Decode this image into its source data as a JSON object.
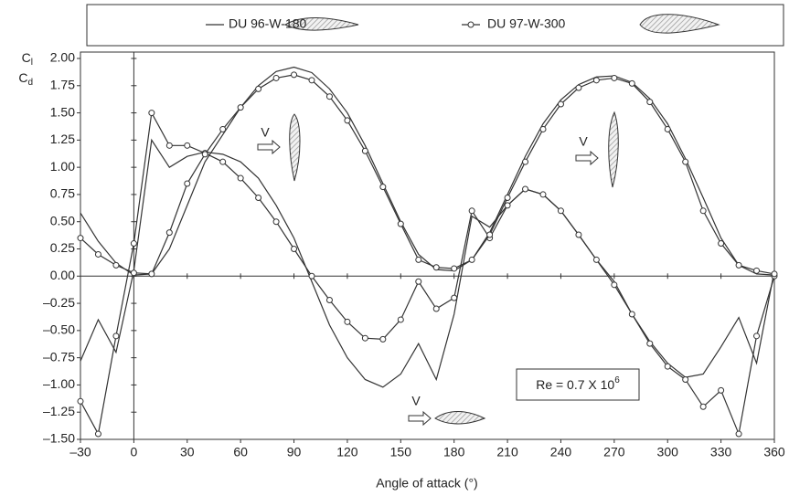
{
  "chart_data": {
    "type": "line",
    "xlabel": "Angle of attack (°)",
    "ylabel_lift": {
      "base": "C",
      "sub": "l"
    },
    "ylabel_drag": {
      "base": "C",
      "sub": "d"
    },
    "annotation": {
      "base": "Re = 0.7 X 10",
      "sup": "6"
    },
    "flow_label": "V",
    "xlim": [
      -30,
      360
    ],
    "ylim": [
      -1.5,
      2.0
    ],
    "xticks": [
      {
        "value": -30,
        "label": "–30"
      },
      0,
      30,
      60,
      90,
      120,
      150,
      180,
      210,
      240,
      270,
      300,
      330,
      360
    ],
    "yticks": [
      {
        "value": -1.5,
        "label": "–1.50"
      },
      {
        "value": -1.25,
        "label": "–1.25"
      },
      {
        "value": -1.0,
        "label": "–1.00"
      },
      {
        "value": -0.75,
        "label": "–0.75"
      },
      {
        "value": -0.5,
        "label": "–0.50"
      },
      {
        "value": -0.25,
        "label": "–0.25"
      },
      {
        "value": 0,
        "label": "0.00"
      },
      {
        "value": 0.25,
        "label": "0.25"
      },
      {
        "value": 0.5,
        "label": "0.50"
      },
      {
        "value": 0.75,
        "label": "0.75"
      },
      {
        "value": 1.0,
        "label": "1.00"
      },
      {
        "value": 1.25,
        "label": "1.25"
      },
      {
        "value": 1.5,
        "label": "1.50"
      },
      {
        "value": 1.75,
        "label": "1.75"
      },
      {
        "value": 2.0,
        "label": "2.00"
      }
    ],
    "x": [
      -30,
      -20,
      -10,
      0,
      10,
      20,
      30,
      40,
      50,
      60,
      70,
      80,
      90,
      100,
      110,
      120,
      130,
      140,
      150,
      160,
      170,
      180,
      190,
      200,
      210,
      220,
      230,
      240,
      250,
      260,
      270,
      280,
      290,
      300,
      310,
      320,
      330,
      340,
      350,
      360
    ],
    "series": [
      {
        "name": "DU 96-W-180",
        "color": "#333333",
        "markers": false,
        "cl": [
          -0.78,
          -0.4,
          -0.7,
          0.05,
          1.25,
          1.0,
          1.1,
          1.14,
          1.12,
          1.05,
          0.9,
          0.65,
          0.35,
          -0.05,
          -0.45,
          -0.75,
          -0.95,
          -1.02,
          -0.9,
          -0.62,
          -0.95,
          -0.35,
          0.55,
          0.45,
          0.65,
          0.8,
          0.75,
          0.6,
          0.38,
          0.15,
          -0.05,
          -0.35,
          -0.6,
          -0.8,
          -0.93,
          -0.9,
          -0.65,
          -0.38,
          -0.8,
          0.05
        ],
        "cd": [
          0.58,
          0.32,
          0.12,
          0.01,
          0.02,
          0.25,
          0.65,
          1.05,
          1.3,
          1.55,
          1.75,
          1.88,
          1.92,
          1.87,
          1.72,
          1.5,
          1.2,
          0.85,
          0.5,
          0.2,
          0.06,
          0.05,
          0.15,
          0.4,
          0.75,
          1.1,
          1.4,
          1.62,
          1.76,
          1.83,
          1.84,
          1.78,
          1.63,
          1.4,
          1.08,
          0.72,
          0.35,
          0.1,
          0.02,
          0.01
        ]
      },
      {
        "name": "DU 97-W-300",
        "color": "#333333",
        "markers": true,
        "cl": [
          -1.15,
          -1.45,
          -0.55,
          0.3,
          1.5,
          1.2,
          1.2,
          1.13,
          1.05,
          0.9,
          0.72,
          0.5,
          0.25,
          0.0,
          -0.22,
          -0.42,
          -0.57,
          -0.58,
          -0.4,
          -0.05,
          -0.3,
          -0.2,
          0.6,
          0.35,
          0.65,
          0.8,
          0.75,
          0.6,
          0.38,
          0.15,
          -0.08,
          -0.35,
          -0.62,
          -0.83,
          -0.95,
          -1.2,
          -1.05,
          -1.45,
          -0.55,
          0.0
        ],
        "cd": [
          0.35,
          0.2,
          0.1,
          0.03,
          0.02,
          0.4,
          0.85,
          1.12,
          1.35,
          1.55,
          1.72,
          1.82,
          1.85,
          1.8,
          1.65,
          1.43,
          1.15,
          0.82,
          0.48,
          0.15,
          0.08,
          0.07,
          0.15,
          0.38,
          0.72,
          1.05,
          1.35,
          1.58,
          1.73,
          1.8,
          1.82,
          1.77,
          1.6,
          1.35,
          1.05,
          0.6,
          0.3,
          0.1,
          0.05,
          0.02
        ]
      }
    ]
  }
}
